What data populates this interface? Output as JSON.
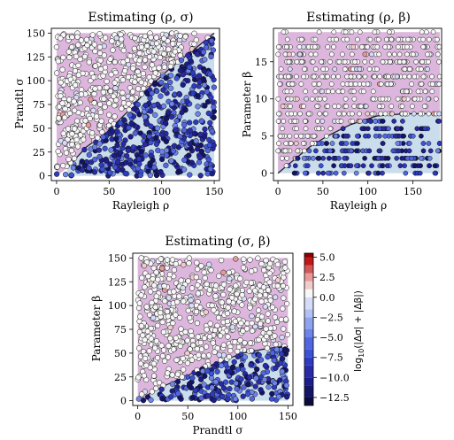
{
  "colors": {
    "bg_red": "#e8b0bc",
    "bg_purple": "#dcb6dc",
    "bg_blue": "#c9ddec",
    "region_boundary": "#1a1a2a",
    "point_edge": "#111111"
  },
  "colorbar": {
    "label": "log10(|Δσ|+|Δβ|)",
    "label_parts": {
      "base": "log",
      "sub": "10",
      "rest": "(|Δσ| + |Δβ|)"
    },
    "ticks": [
      "5.0",
      "2.5",
      "0.0",
      "−2.5",
      "−5.0",
      "−7.5",
      "−10.0",
      "−12.5"
    ],
    "levels": [
      {
        "from": -13.5,
        "to": -12.5,
        "color": "#0a0a3c"
      },
      {
        "from": -12.5,
        "to": -11.0,
        "color": "#141466"
      },
      {
        "from": -11.0,
        "to": -10.0,
        "color": "#1c1c8a"
      },
      {
        "from": -10.0,
        "to": -8.5,
        "color": "#2a2aa6"
      },
      {
        "from": -8.5,
        "to": -7.5,
        "color": "#2d3bc0"
      },
      {
        "from": -7.5,
        "to": -6.5,
        "color": "#3c52d6"
      },
      {
        "from": -6.5,
        "to": -5.0,
        "color": "#5166e0"
      },
      {
        "from": -5.0,
        "to": -4.0,
        "color": "#6d84e8"
      },
      {
        "from": -4.0,
        "to": -2.5,
        "color": "#8fa2ee"
      },
      {
        "from": -2.5,
        "to": -1.5,
        "color": "#b3c0f2"
      },
      {
        "from": -1.5,
        "to": 0.0,
        "color": "#d6dcf8"
      },
      {
        "from": 0.0,
        "to": 1.0,
        "color": "#f7f7f7"
      },
      {
        "from": 1.0,
        "to": 2.0,
        "color": "#f2cccc"
      },
      {
        "from": 2.0,
        "to": 3.0,
        "color": "#e89a9a"
      },
      {
        "from": 3.0,
        "to": 4.0,
        "color": "#d25757"
      },
      {
        "from": 4.0,
        "to": 5.0,
        "color": "#c01818"
      },
      {
        "from": 5.0,
        "to": 5.5,
        "color": "#8a0000"
      }
    ]
  },
  "chart_data": [
    {
      "type": "scatter",
      "title": "Estimating (ρ, σ)",
      "xlabel": "Rayleigh ρ",
      "ylabel": "Prandtl σ",
      "xlim": [
        -5,
        155
      ],
      "ylim": [
        -5,
        155
      ],
      "xticks": [
        0,
        50,
        100,
        150
      ],
      "yticks": [
        0,
        25,
        50,
        75,
        100,
        125,
        150
      ],
      "xtick_labels": [
        "0",
        "50",
        "100",
        "150"
      ],
      "ytick_labels": [
        "0",
        "25",
        "50",
        "75",
        "100",
        "125",
        "150"
      ],
      "grid": false,
      "colorbar": "log10(|Δσ|+|Δβ|)",
      "boundary": [
        [
          10,
          8
        ],
        [
          28,
          30
        ],
        [
          48,
          46
        ],
        [
          70,
          70
        ],
        [
          90,
          95
        ],
        [
          110,
          115
        ],
        [
          130,
          132
        ],
        [
          150,
          150
        ]
      ],
      "background": [
        {
          "color": "purple",
          "polygon": [
            [
              0,
              0
            ],
            [
              0,
              150
            ],
            [
              150,
              150
            ],
            [
              150,
              150
            ],
            [
              130,
              132
            ],
            [
              110,
              115
            ],
            [
              90,
              95
            ],
            [
              70,
              70
            ],
            [
              48,
              46
            ],
            [
              28,
              30
            ],
            [
              10,
              8
            ]
          ]
        },
        {
          "color": "blue",
          "polygon": [
            [
              10,
              8
            ],
            [
              28,
              30
            ],
            [
              48,
              46
            ],
            [
              70,
              70
            ],
            [
              90,
              95
            ],
            [
              110,
              115
            ],
            [
              130,
              132
            ],
            [
              150,
              150
            ],
            [
              150,
              0
            ],
            [
              10,
              0
            ]
          ]
        }
      ],
      "points_summary": "~1000 samples on uniform grid of x in [0,150], y in [0,150]; above boundary log10 error ≈ 0 (white), below boundary log10 error ≈ -12 to -4 (dark to mid blue)",
      "seed": 11,
      "n": 1000,
      "x_range": [
        0,
        150
      ],
      "y_range": [
        0,
        150
      ],
      "x_step": 0,
      "y_step": 0
    },
    {
      "type": "scatter",
      "title": "Estimating (ρ, β)",
      "xlabel": "Rayleigh ρ",
      "ylabel": "Parameter β",
      "xlim": [
        -5,
        182
      ],
      "ylim": [
        -1,
        19.5
      ],
      "xticks": [
        0,
        50,
        100,
        150
      ],
      "yticks": [
        0,
        5,
        10,
        15
      ],
      "xtick_labels": [
        "0",
        "50",
        "100",
        "150"
      ],
      "ytick_labels": [
        "0",
        "5",
        "10",
        "15"
      ],
      "grid": false,
      "colorbar": "log10(|Δσ|+|Δβ|)",
      "boundary": [
        [
          0,
          0
        ],
        [
          20,
          2
        ],
        [
          35,
          3.5
        ],
        [
          55,
          5
        ],
        [
          80,
          6.5
        ],
        [
          110,
          7.7
        ],
        [
          140,
          8
        ],
        [
          180,
          8
        ]
      ],
      "background": [
        {
          "color": "purple",
          "polygon": [
            [
              0,
              0
            ],
            [
              0,
              19
            ],
            [
              180,
              19
            ],
            [
              180,
              8
            ],
            [
              140,
              8
            ],
            [
              110,
              7.7
            ],
            [
              80,
              6.5
            ],
            [
              55,
              5
            ],
            [
              35,
              3.5
            ],
            [
              20,
              2
            ]
          ]
        },
        {
          "color": "blue",
          "polygon": [
            [
              0,
              0
            ],
            [
              20,
              2
            ],
            [
              35,
              3.5
            ],
            [
              55,
              5
            ],
            [
              80,
              6.5
            ],
            [
              110,
              7.7
            ],
            [
              140,
              8
            ],
            [
              180,
              8
            ],
            [
              180,
              0
            ]
          ]
        }
      ],
      "points_summary": "samples on y in {0,1,...,19} rows, x in [0,180]; above boundary ≈ 0 (white), below boundary ≈ -12 to -5 (blue)",
      "seed": 23,
      "n": 760,
      "x_range": [
        0,
        180
      ],
      "y_range": [
        0,
        19
      ],
      "x_step": 0,
      "y_step": 1
    },
    {
      "type": "scatter",
      "title": "Estimating (σ, β)",
      "xlabel": "Prandtl σ",
      "ylabel": "Parameter β",
      "xlim": [
        -5,
        155
      ],
      "ylim": [
        -5,
        155
      ],
      "xticks": [
        0,
        50,
        100,
        150
      ],
      "yticks": [
        0,
        25,
        50,
        75,
        100,
        125,
        150
      ],
      "xtick_labels": [
        "0",
        "50",
        "100",
        "150"
      ],
      "ytick_labels": [
        "0",
        "25",
        "50",
        "75",
        "100",
        "125",
        "150"
      ],
      "grid": false,
      "colorbar": "log10(|Δσ|+|Δβ|)",
      "boundary": [
        [
          8,
          5
        ],
        [
          25,
          15
        ],
        [
          45,
          24
        ],
        [
          65,
          34
        ],
        [
          85,
          42
        ],
        [
          105,
          50
        ],
        [
          130,
          55
        ],
        [
          150,
          57
        ]
      ],
      "background": [
        {
          "color": "purple",
          "polygon": [
            [
              0,
              0
            ],
            [
              0,
              150
            ],
            [
              150,
              150
            ],
            [
              150,
              57
            ],
            [
              130,
              55
            ],
            [
              105,
              50
            ],
            [
              85,
              42
            ],
            [
              65,
              34
            ],
            [
              45,
              24
            ],
            [
              25,
              15
            ],
            [
              8,
              5
            ],
            [
              8,
              0
            ]
          ]
        },
        {
          "color": "blue",
          "polygon": [
            [
              8,
              5
            ],
            [
              25,
              15
            ],
            [
              45,
              24
            ],
            [
              65,
              34
            ],
            [
              85,
              42
            ],
            [
              105,
              50
            ],
            [
              130,
              55
            ],
            [
              150,
              57
            ],
            [
              150,
              0
            ],
            [
              8,
              0
            ]
          ]
        }
      ],
      "points_summary": "~900 samples on x in [0,150], y in [0,150]; above boundary ≈ 0 (white), below boundary ≈ -12 to -4 (blue)",
      "seed": 37,
      "n": 900,
      "x_range": [
        0,
        150
      ],
      "y_range": [
        0,
        150
      ],
      "x_step": 0,
      "y_step": 0
    }
  ]
}
